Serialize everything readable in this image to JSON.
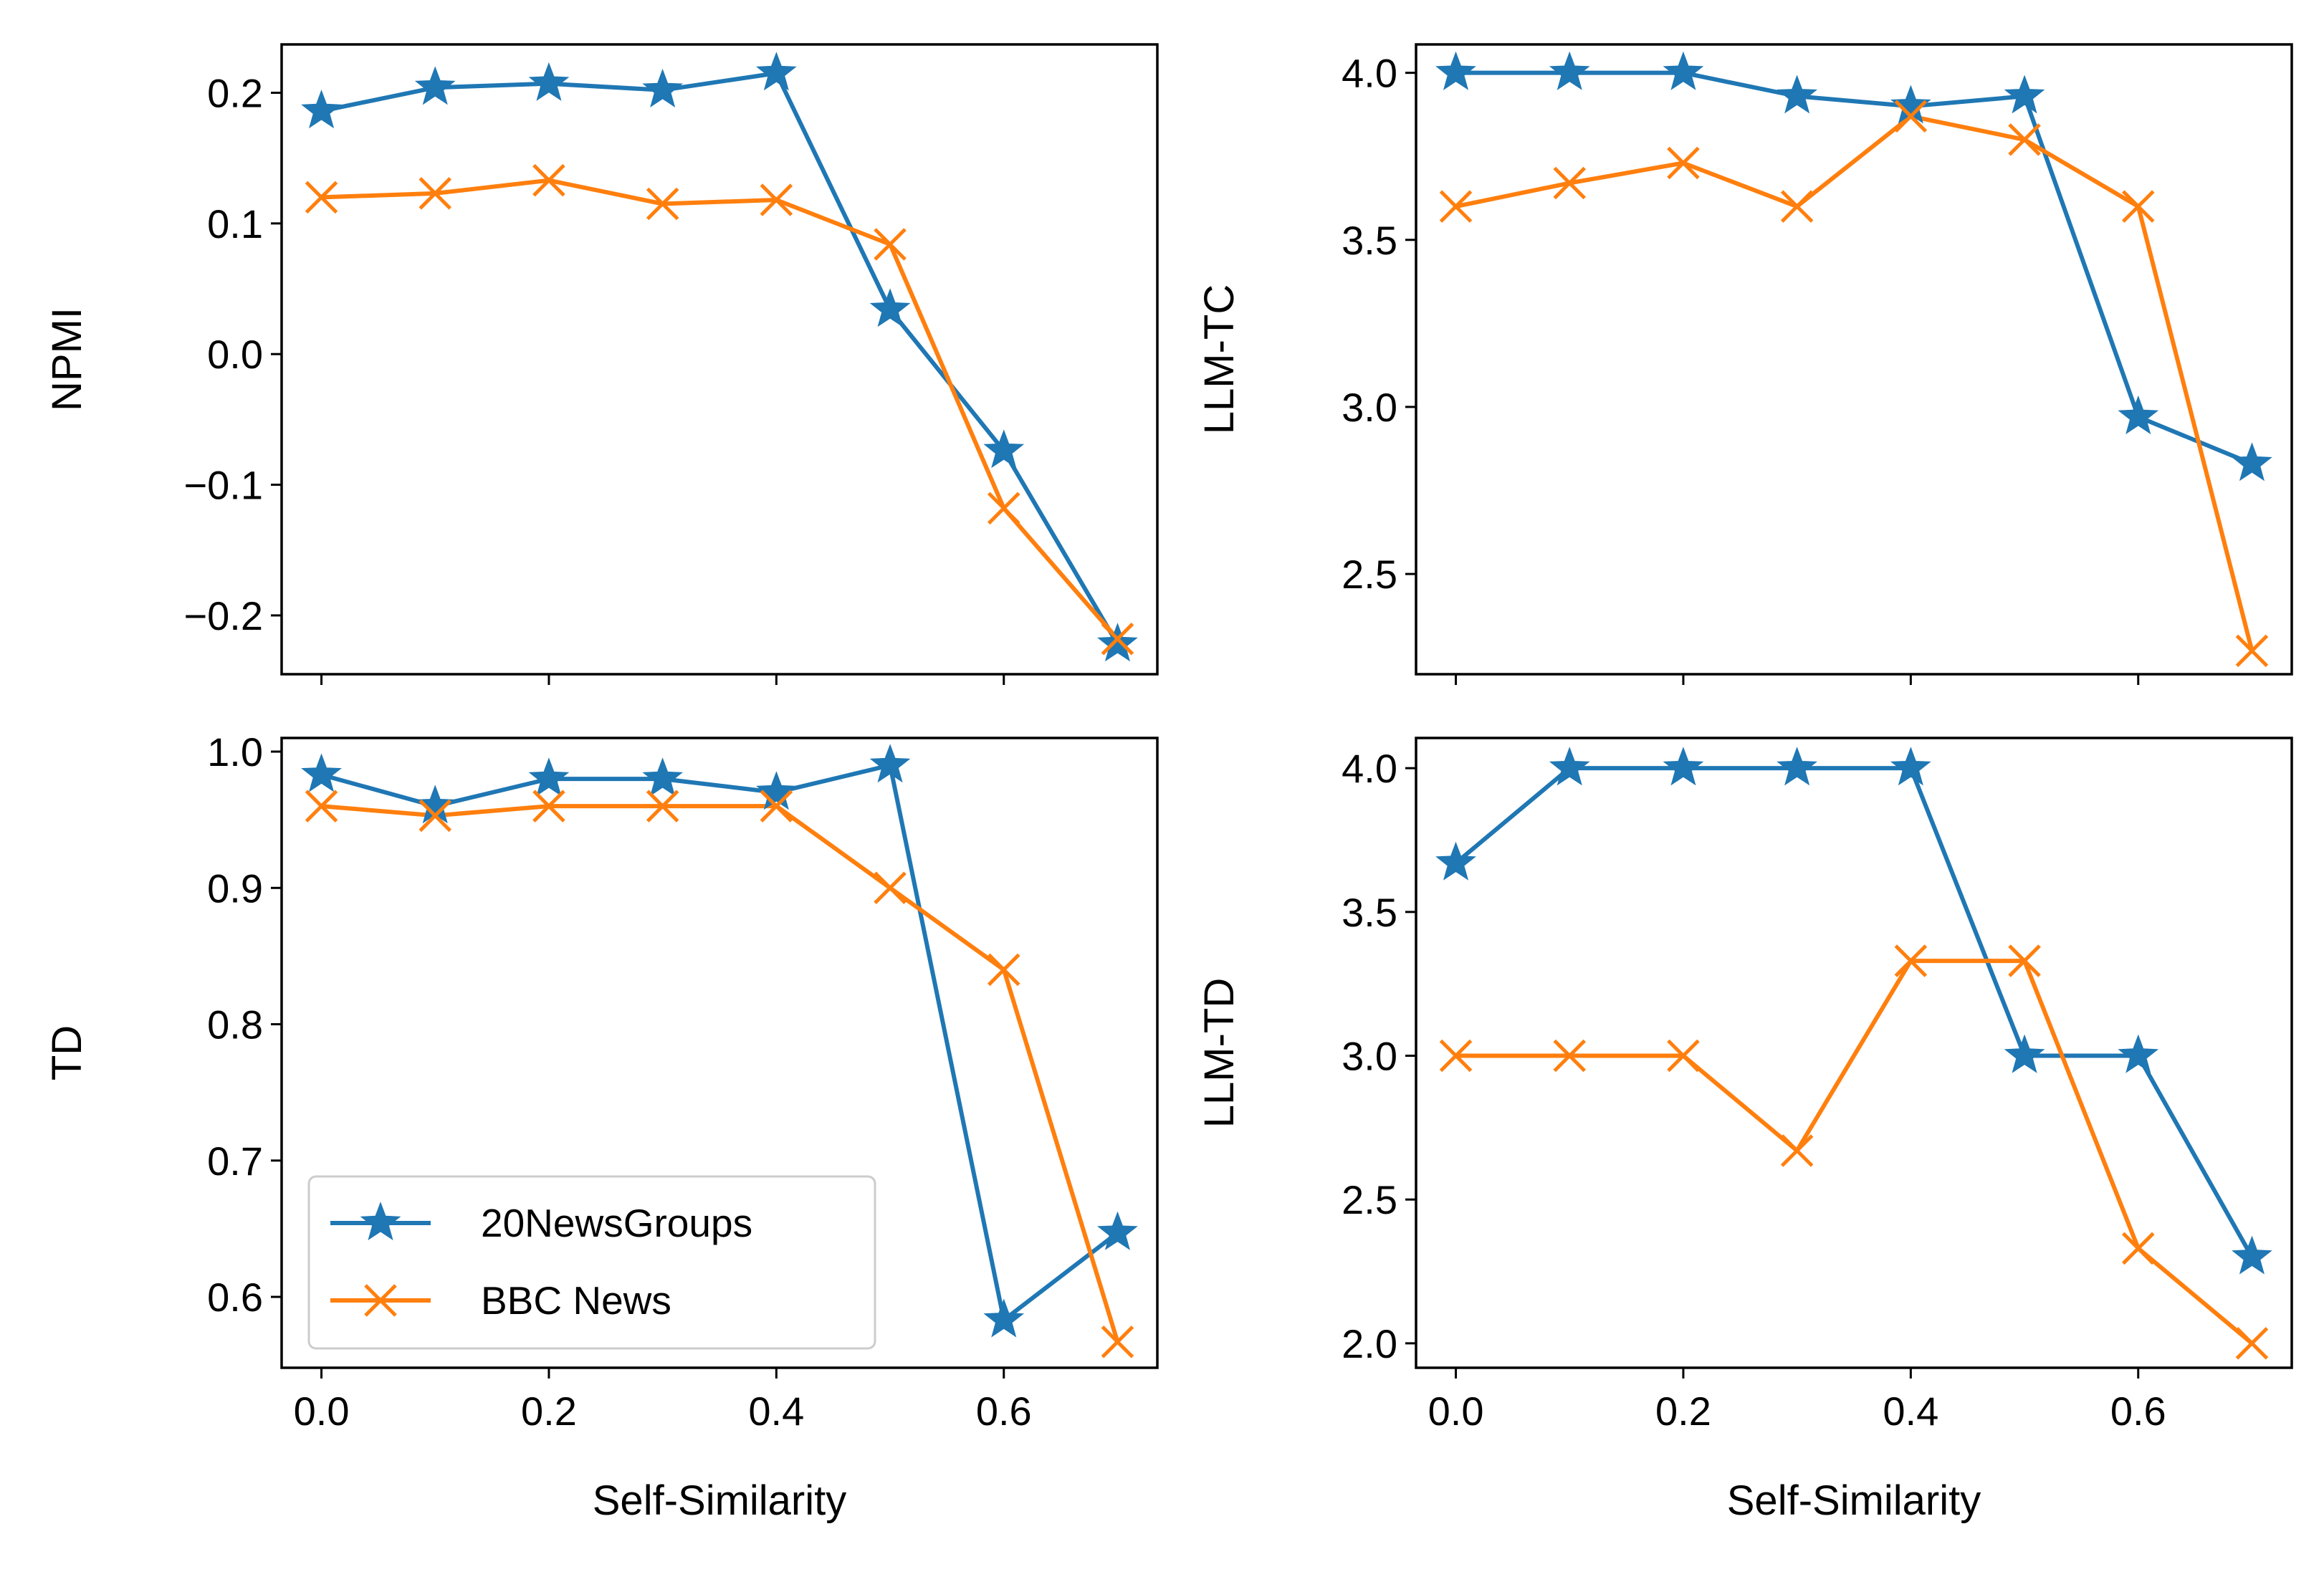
{
  "chart_data": [
    {
      "type": "line",
      "ylabel": "NPMI",
      "xlabel": "",
      "x": [
        0.0,
        0.1,
        0.2,
        0.3,
        0.4,
        0.5,
        0.6,
        0.7
      ],
      "xlim": [
        -0.035,
        0.735
      ],
      "ylim": [
        -0.245,
        0.237
      ],
      "xticks": [
        "0.0",
        "0.2",
        "0.4",
        "0.6"
      ],
      "xtick_values": [
        0.0,
        0.2,
        0.4,
        0.6
      ],
      "show_xtick_labels": false,
      "yticks": [
        "−0.2",
        "−0.1",
        "0.0",
        "0.1",
        "0.2"
      ],
      "ytick_values": [
        -0.2,
        -0.1,
        0.0,
        0.1,
        0.2
      ],
      "grid": false,
      "series": [
        {
          "name": "20NewsGroups",
          "marker": "star",
          "color": "#1f77b4",
          "values": [
            0.186,
            0.204,
            0.207,
            0.202,
            0.215,
            0.034,
            -0.074,
            -0.222
          ]
        },
        {
          "name": "BBC News",
          "marker": "x",
          "color": "#ff7f0e",
          "values": [
            0.12,
            0.123,
            0.133,
            0.115,
            0.118,
            0.084,
            -0.118,
            -0.218
          ]
        }
      ]
    },
    {
      "type": "line",
      "ylabel": "LLM-TC",
      "xlabel": "",
      "x": [
        0.0,
        0.1,
        0.2,
        0.3,
        0.4,
        0.5,
        0.6,
        0.7
      ],
      "xlim": [
        -0.035,
        0.735
      ],
      "ylim": [
        2.2,
        4.085
      ],
      "xticks": [
        "0.0",
        "0.2",
        "0.4",
        "0.6"
      ],
      "xtick_values": [
        0.0,
        0.2,
        0.4,
        0.6
      ],
      "show_xtick_labels": false,
      "yticks": [
        "2.5",
        "3.0",
        "3.5",
        "4.0"
      ],
      "ytick_values": [
        2.5,
        3.0,
        3.5,
        4.0
      ],
      "grid": false,
      "series": [
        {
          "name": "20NewsGroups",
          "marker": "star",
          "color": "#1f77b4",
          "values": [
            4.0,
            4.0,
            4.0,
            3.93,
            3.9,
            3.93,
            2.97,
            2.83
          ]
        },
        {
          "name": "BBC News",
          "marker": "x",
          "color": "#ff7f0e",
          "values": [
            3.6,
            3.67,
            3.73,
            3.6,
            3.87,
            3.8,
            3.6,
            2.27
          ]
        }
      ]
    },
    {
      "type": "line",
      "ylabel": "TD",
      "xlabel": "Self-Similarity",
      "x": [
        0.0,
        0.1,
        0.2,
        0.3,
        0.4,
        0.5,
        0.6,
        0.7
      ],
      "xlim": [
        -0.035,
        0.735
      ],
      "ylim": [
        0.548,
        1.01
      ],
      "xticks": [
        "0.0",
        "0.2",
        "0.4",
        "0.6"
      ],
      "xtick_values": [
        0.0,
        0.2,
        0.4,
        0.6
      ],
      "show_xtick_labels": true,
      "yticks": [
        "0.6",
        "0.7",
        "0.8",
        "0.9",
        "1.0"
      ],
      "ytick_values": [
        0.6,
        0.7,
        0.8,
        0.9,
        1.0
      ],
      "grid": false,
      "legend": {
        "placement": "lower-left",
        "entries": [
          "20NewsGroups",
          "BBC News"
        ]
      },
      "series": [
        {
          "name": "20NewsGroups",
          "marker": "star",
          "color": "#1f77b4",
          "values": [
            0.983,
            0.96,
            0.98,
            0.98,
            0.97,
            0.99,
            0.583,
            0.647
          ]
        },
        {
          "name": "BBC News",
          "marker": "x",
          "color": "#ff7f0e",
          "values": [
            0.96,
            0.953,
            0.96,
            0.96,
            0.96,
            0.9,
            0.84,
            0.567
          ]
        }
      ]
    },
    {
      "type": "line",
      "ylabel": "LLM-TD",
      "xlabel": "Self-Similarity",
      "x": [
        0.0,
        0.1,
        0.2,
        0.3,
        0.4,
        0.5,
        0.6,
        0.7
      ],
      "xlim": [
        -0.035,
        0.735
      ],
      "ylim": [
        1.915,
        4.105
      ],
      "xticks": [
        "0.0",
        "0.2",
        "0.4",
        "0.6"
      ],
      "xtick_values": [
        0.0,
        0.2,
        0.4,
        0.6
      ],
      "show_xtick_labels": true,
      "yticks": [
        "2.0",
        "2.5",
        "3.0",
        "3.5",
        "4.0"
      ],
      "ytick_values": [
        2.0,
        2.5,
        3.0,
        3.5,
        4.0
      ],
      "grid": false,
      "series": [
        {
          "name": "20NewsGroups",
          "marker": "star",
          "color": "#1f77b4",
          "values": [
            3.67,
            4.0,
            4.0,
            4.0,
            4.0,
            3.0,
            3.0,
            2.3
          ]
        },
        {
          "name": "BBC News",
          "marker": "x",
          "color": "#ff7f0e",
          "values": [
            3.0,
            3.0,
            3.0,
            2.67,
            3.33,
            3.33,
            2.33,
            2.0
          ]
        }
      ]
    }
  ]
}
